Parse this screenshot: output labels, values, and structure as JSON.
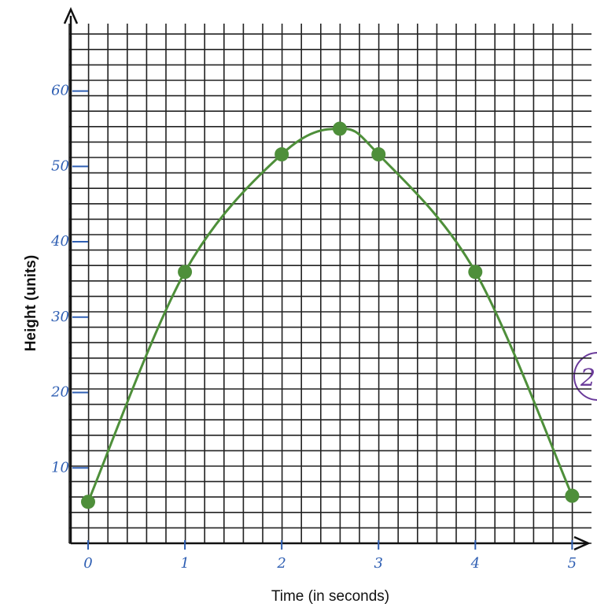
{
  "chart_data": {
    "type": "line",
    "x_label": "Time (in seconds)",
    "y_label": "Height (units)",
    "x": [
      0,
      1,
      2,
      2.6,
      3,
      4,
      5
    ],
    "series": [
      {
        "values": [
          5.5,
          36,
          51.6,
          55,
          51.6,
          36,
          6.3
        ],
        "color": "#4e8f3a"
      }
    ],
    "xlim": [
      0,
      5.2
    ],
    "xticks": [
      0,
      1,
      2,
      3,
      4,
      5
    ],
    "ylim": [
      0,
      68
    ],
    "yticks": [
      10,
      20,
      30,
      40,
      50,
      60
    ],
    "grid": true,
    "annotation": "2"
  }
}
